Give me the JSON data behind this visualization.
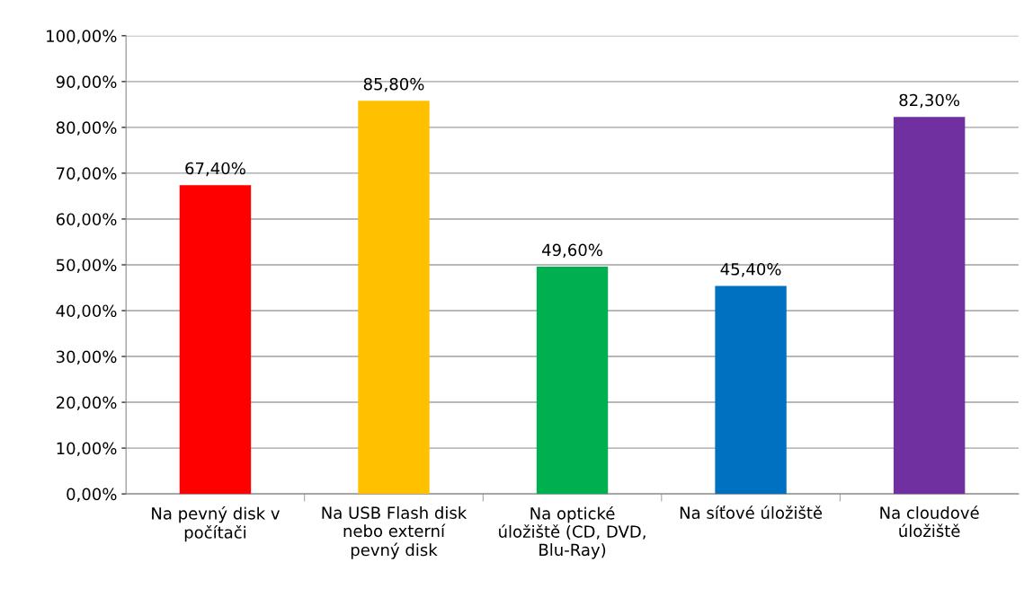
{
  "chart_data": {
    "type": "bar",
    "categories": [
      "Na pevný disk v\npočítači",
      "Na USB Flash disk\nnebo externí\npevný disk",
      "Na optické\núložiště (CD, DVD,\nBlu-Ray)",
      "Na síťové úložiště",
      "Na cloudové\núložiště"
    ],
    "values": [
      67.4,
      85.8,
      49.6,
      45.4,
      82.3
    ],
    "colors": [
      "#ff0000",
      "#ffc000",
      "#00b050",
      "#0070c0",
      "#7030a0"
    ],
    "value_labels": [
      "67,40%",
      "85,80%",
      "49,60%",
      "45,40%",
      "82,30%"
    ],
    "ylim": [
      0,
      100
    ],
    "yticks": [
      {
        "value": 0,
        "label": "0,00%"
      },
      {
        "value": 10,
        "label": "10,00%"
      },
      {
        "value": 20,
        "label": "20,00%"
      },
      {
        "value": 30,
        "label": "30,00%"
      },
      {
        "value": 40,
        "label": "40,00%"
      },
      {
        "value": 50,
        "label": "50,00%"
      },
      {
        "value": 60,
        "label": "60,00%"
      },
      {
        "value": 70,
        "label": "70,00%"
      },
      {
        "value": 80,
        "label": "80,00%"
      },
      {
        "value": 90,
        "label": "90,00%"
      },
      {
        "value": 100,
        "label": "100,00%"
      }
    ],
    "grid": "y",
    "legend": false
  }
}
